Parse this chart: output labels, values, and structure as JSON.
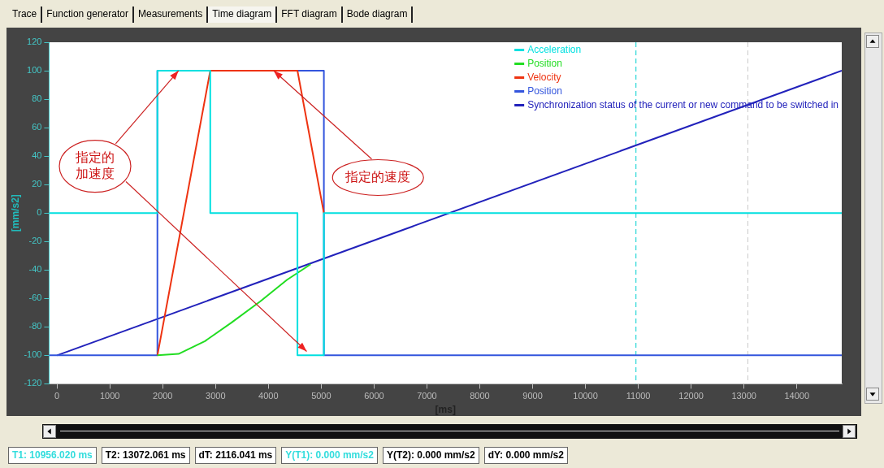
{
  "chart_data": {
    "type": "line",
    "xlabel": "[ms]",
    "ylabel": "[mm/s2]",
    "xlim": [
      -150,
      14850
    ],
    "xticks": [
      0,
      1000,
      2000,
      3000,
      4000,
      5000,
      6000,
      7000,
      8000,
      9000,
      10000,
      11000,
      12000,
      13000,
      14000
    ],
    "ylim": [
      -120,
      120
    ],
    "yticks": [
      -120,
      -100,
      -80,
      -60,
      -40,
      -20,
      0,
      20,
      40,
      60,
      80,
      100,
      120
    ],
    "grid": false,
    "legend": "top right",
    "marker": "none",
    "line_style": "solid",
    "series": [
      {
        "name": "Acceleration",
        "color": "#00e0e0",
        "x": [
          -150,
          1900,
          1900,
          2900,
          2900,
          4550,
          4550,
          5050,
          5050,
          14850
        ],
        "values": [
          0,
          0,
          100,
          100,
          0,
          0,
          -100,
          -100,
          0,
          0
        ]
      },
      {
        "name": "Position",
        "color": "#22dd22",
        "x": [
          1900,
          2300,
          2800,
          3300,
          3850,
          4350,
          4800
        ],
        "values": [
          -100,
          -99,
          -90,
          -77,
          -62,
          -47,
          -36
        ]
      },
      {
        "name": "Velocity",
        "color": "#ee3311",
        "x": [
          1900,
          2900,
          4550,
          5050
        ],
        "values": [
          -100,
          100,
          100,
          0
        ]
      },
      {
        "name": "Position",
        "color": "#3355dd",
        "x": [
          -150,
          1900,
          1900,
          5050,
          5050,
          14850
        ],
        "values": [
          -100,
          -100,
          100,
          100,
          -100,
          -100
        ]
      },
      {
        "name": "Synchronization status of the current or new command to be switched in",
        "color": "#2222bb",
        "x": [
          0,
          14850
        ],
        "values": [
          -100,
          100
        ]
      }
    ],
    "ref_lines": [
      {
        "axis": "x",
        "value": 10956.02,
        "color": "#00d0d0",
        "line_style": "dashed"
      },
      {
        "axis": "x",
        "value": 13072.061,
        "color": "#c8c8c8",
        "line_style": "dashed"
      }
    ],
    "annotations": [
      "Trace",
      "Function generator",
      "Measurements",
      "Time diagram",
      "FFT diagram",
      "Bode diagram",
      "T1: 10956.020 ms",
      "T2: 13072.061 ms",
      "dT: 2116.041 ms",
      "Y(T1):  0.000 mm/s2",
      "Y(T2): 0.000 mm/s2",
      "dY: 0.000 mm/s2",
      {
        "text": "指定的加速度",
        "x": 2300,
        "y": 100
      },
      {
        "text": "指定的速度",
        "x": 4100,
        "y": 100
      }
    ]
  }
}
